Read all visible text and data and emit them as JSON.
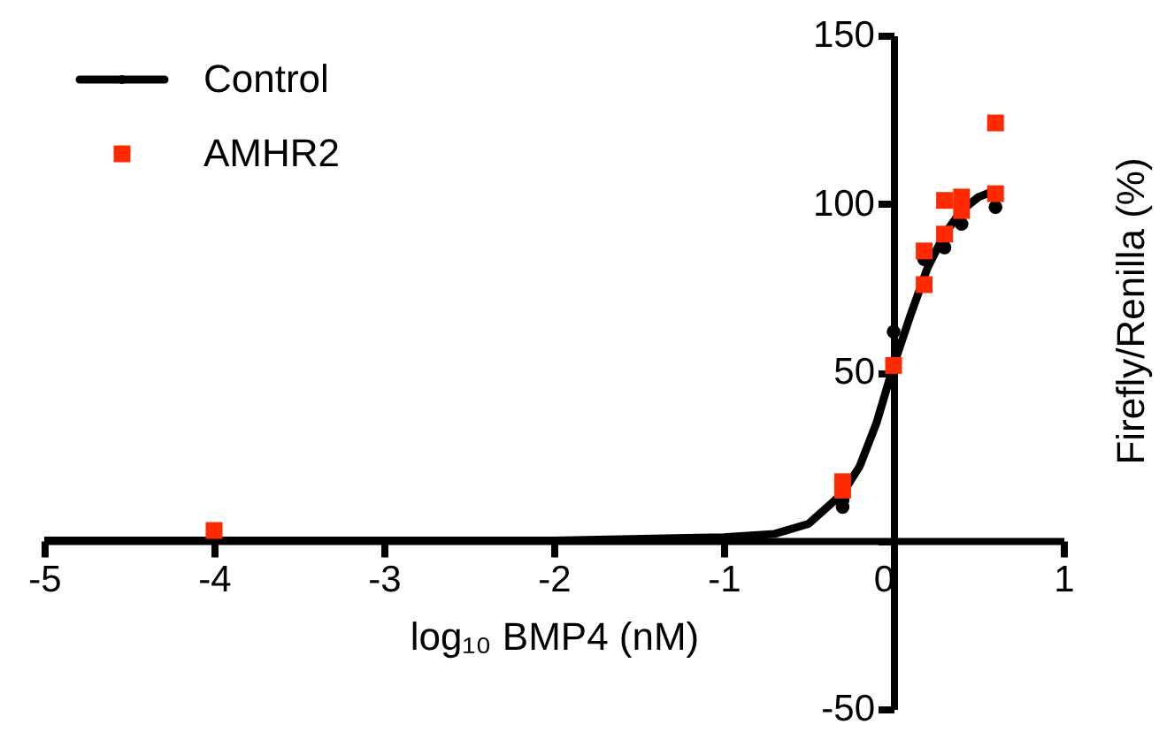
{
  "chart_data": {
    "type": "scatter",
    "xlabel": "log₁₀ BMP4 (nM)",
    "ylabel": "Firefly/Renilla (%)",
    "xlim": [
      -5,
      1
    ],
    "xticks": [
      -5,
      -4,
      -3,
      -2,
      -1,
      0,
      1
    ],
    "ylim": [
      -50,
      150
    ],
    "yticks": [
      -50,
      {
        "value": 0,
        "label": null
      },
      50,
      100,
      150
    ],
    "legend": "top left",
    "grid": false,
    "series": [
      {
        "type": "line",
        "color": "#000000",
        "marker": "none",
        "x": [
          -5,
          -2,
          -1,
          -0.7,
          -0.5,
          -0.3,
          -0.2,
          -0.1,
          0,
          0.1,
          0.2,
          0.3,
          0.4,
          0.5,
          0.6
        ],
        "values": [
          0,
          0,
          1,
          2,
          5,
          14,
          22,
          35,
          52,
          67,
          81,
          91,
          98,
          102,
          104
        ]
      },
      {
        "name": "Control",
        "type": "scatter",
        "color": "#000000",
        "marker": "circle",
        "x": [
          -0.3,
          -0.3,
          0,
          0.18,
          0.3,
          0.4,
          0.6
        ],
        "values": [
          10,
          12,
          62,
          83.5,
          87,
          94,
          99
        ]
      },
      {
        "name": "AMHR2",
        "type": "scatter",
        "color": "#ff2a00",
        "marker": "square",
        "x": [
          -4,
          -0.3,
          -0.3,
          0,
          0.18,
          0.18,
          0.3,
          0.3,
          0.4,
          0.4,
          0.6,
          0.6
        ],
        "values": [
          3,
          17.5,
          15,
          52,
          76,
          86,
          101,
          91,
          102,
          98,
          124,
          103
        ]
      }
    ]
  }
}
